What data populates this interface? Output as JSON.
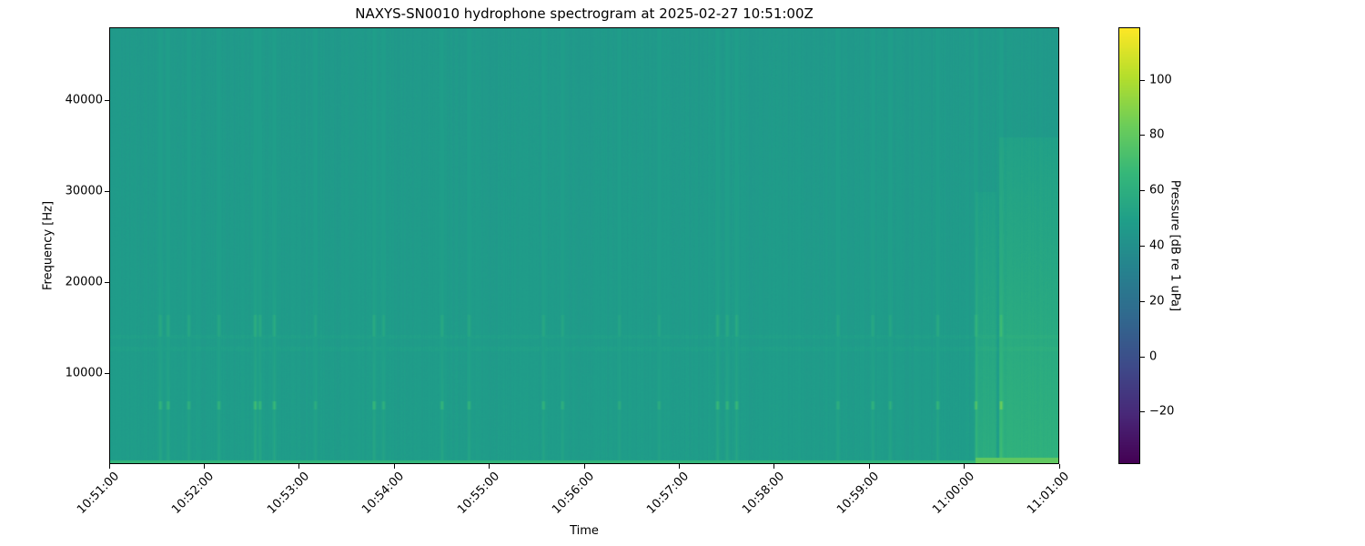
{
  "chart_data": {
    "type": "heatmap",
    "title": "NAXYS-SN0010 hydrophone spectrogram at 2025-02-27 10:51:00Z",
    "xlabel": "Time",
    "ylabel": "Frequency [Hz]",
    "colorbar_label": "Pressure [dB re 1 uPa]",
    "colormap": "viridis",
    "xlim": [
      "10:51:00",
      "11:01:00"
    ],
    "ylim": [
      0,
      48000
    ],
    "clim": [
      -39,
      119
    ],
    "x_ticks": [
      "10:51:00",
      "10:52:00",
      "10:53:00",
      "10:54:00",
      "10:55:00",
      "10:56:00",
      "10:57:00",
      "10:58:00",
      "10:59:00",
      "11:00:00",
      "11:01:00"
    ],
    "y_ticks": [
      10000,
      20000,
      30000,
      40000
    ],
    "colorbar_ticks": [
      -20,
      0,
      20,
      40,
      60,
      80,
      100
    ],
    "background_level_db": 48,
    "low_frequency_band_db": 65,
    "transients": [
      {
        "time": "10:51:32",
        "db": 66
      },
      {
        "time": "10:51:37",
        "db": 66
      },
      {
        "time": "10:51:50",
        "db": 62
      },
      {
        "time": "10:52:09",
        "db": 64
      },
      {
        "time": "10:52:32",
        "db": 72
      },
      {
        "time": "10:52:35",
        "db": 68
      },
      {
        "time": "10:52:44",
        "db": 68
      },
      {
        "time": "10:53:10",
        "db": 60
      },
      {
        "time": "10:53:47",
        "db": 68
      },
      {
        "time": "10:53:53",
        "db": 62
      },
      {
        "time": "10:54:30",
        "db": 66
      },
      {
        "time": "10:54:47",
        "db": 64
      },
      {
        "time": "10:55:34",
        "db": 64
      },
      {
        "time": "10:55:46",
        "db": 62
      },
      {
        "time": "10:56:22",
        "db": 60
      },
      {
        "time": "10:56:47",
        "db": 60
      },
      {
        "time": "10:57:24",
        "db": 68
      },
      {
        "time": "10:57:30",
        "db": 66
      },
      {
        "time": "10:57:36",
        "db": 68
      },
      {
        "time": "10:58:40",
        "db": 62
      },
      {
        "time": "10:59:02",
        "db": 64
      },
      {
        "time": "10:59:13",
        "db": 62
      },
      {
        "time": "10:59:43",
        "db": 66
      },
      {
        "time": "11:00:07",
        "db": 70
      },
      {
        "time": "11:00:23",
        "db": 74
      }
    ]
  }
}
